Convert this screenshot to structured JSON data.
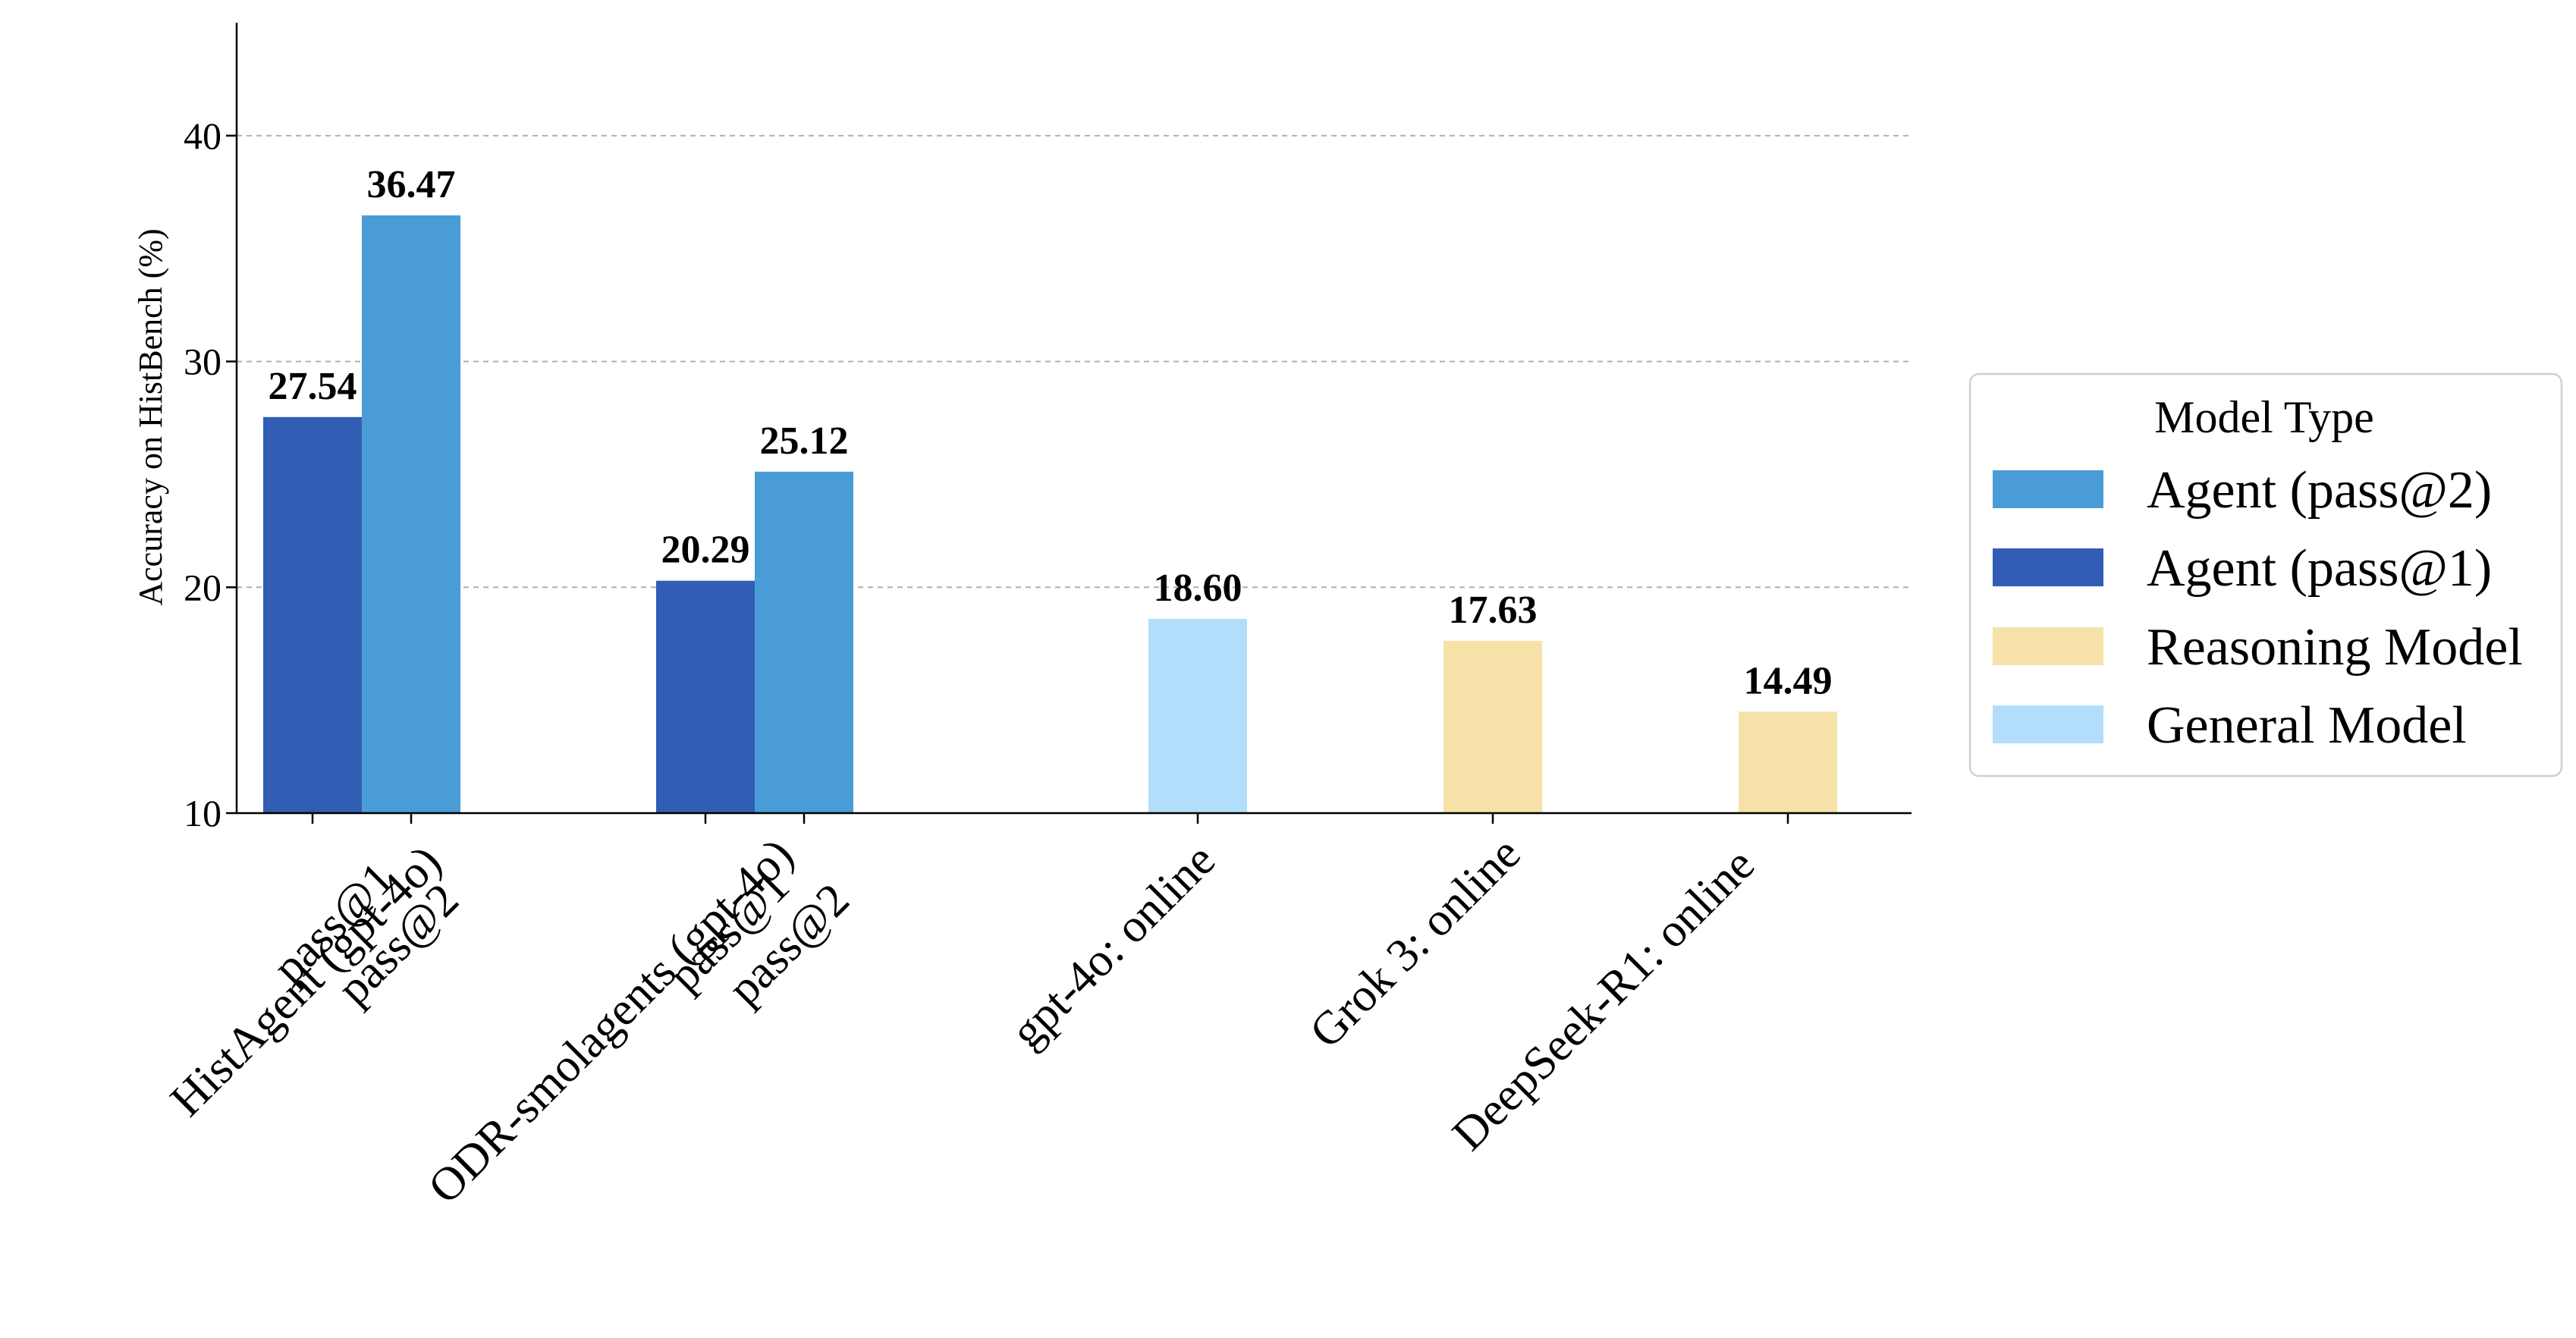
{
  "chart_data": {
    "type": "bar",
    "title": "",
    "xlabel": "",
    "ylabel": "Accuracy on HistBench (%)",
    "ylim": [
      10,
      45
    ],
    "yticks": [
      10,
      20,
      30,
      40
    ],
    "grid": "horizontal dashed",
    "legend_position": "center-right (outside)",
    "legend_title": "Model Type",
    "series_types": [
      {
        "name": "Agent (pass@2)",
        "color": "#4a9cd6"
      },
      {
        "name": "Agent (pass@1)",
        "color": "#325db4"
      },
      {
        "name": "Reasoning Model",
        "color": "#f6e2a8"
      },
      {
        "name": "General Model",
        "color": "#b3defb"
      }
    ],
    "groups": [
      {
        "label": "HistAgent (gpt-4o)",
        "bars": [
          {
            "sub_label": "pass@1",
            "type": "Agent (pass@1)",
            "value": 27.54,
            "text": "27.54"
          },
          {
            "sub_label": "pass@2",
            "type": "Agent (pass@2)",
            "value": 36.47,
            "text": "36.47"
          }
        ]
      },
      {
        "label": "ODR-smolagents (gpt-4o)",
        "bars": [
          {
            "sub_label": "pass@1",
            "type": "Agent (pass@1)",
            "value": 20.29,
            "text": "20.29"
          },
          {
            "sub_label": "pass@2",
            "type": "Agent (pass@2)",
            "value": 25.12,
            "text": "25.12"
          }
        ]
      },
      {
        "label": "gpt-4o: online",
        "bars": [
          {
            "sub_label": "",
            "type": "General Model",
            "value": 18.6,
            "text": "18.60"
          }
        ]
      },
      {
        "label": "Grok 3: online",
        "bars": [
          {
            "sub_label": "",
            "type": "Reasoning Model",
            "value": 17.63,
            "text": "17.63"
          }
        ]
      },
      {
        "label": "DeepSeek-R1: online",
        "bars": [
          {
            "sub_label": "",
            "type": "Reasoning Model",
            "value": 14.49,
            "text": "14.49"
          }
        ]
      }
    ]
  }
}
